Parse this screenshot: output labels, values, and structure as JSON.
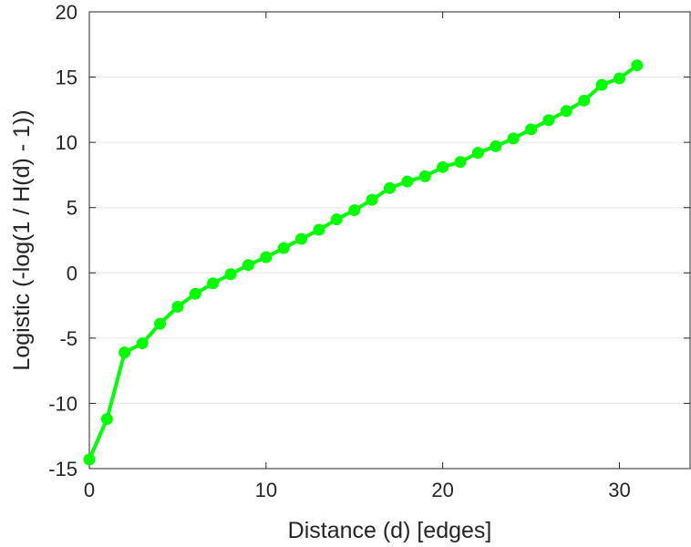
{
  "chart_data": {
    "type": "line",
    "title": "",
    "xlabel": "Distance (d) [edges]",
    "ylabel": "Logistic (-log(1 / H(d) - 1))",
    "xlim": [
      0,
      34
    ],
    "ylim": [
      -15,
      20
    ],
    "xticks": [
      0,
      10,
      20,
      30
    ],
    "yticks": [
      -15,
      -10,
      -5,
      0,
      5,
      10,
      15,
      20
    ],
    "grid": true,
    "series": [
      {
        "color": "#00ff00",
        "x": [
          0,
          1,
          2,
          3,
          4,
          5,
          6,
          7,
          8,
          9,
          10,
          11,
          12,
          13,
          14,
          15,
          16,
          17,
          18,
          19,
          20,
          21,
          22,
          23,
          24,
          25,
          26,
          27,
          28,
          29,
          30,
          31
        ],
        "y": [
          -14.3,
          -11.2,
          -6.1,
          -5.4,
          -3.9,
          -2.6,
          -1.6,
          -0.8,
          -0.1,
          0.6,
          1.2,
          1.9,
          2.6,
          3.3,
          4.1,
          4.8,
          5.6,
          6.5,
          7.0,
          7.4,
          8.1,
          8.5,
          9.2,
          9.7,
          10.3,
          11.0,
          11.7,
          12.4,
          13.2,
          14.4,
          14.9,
          15.9
        ]
      }
    ]
  }
}
